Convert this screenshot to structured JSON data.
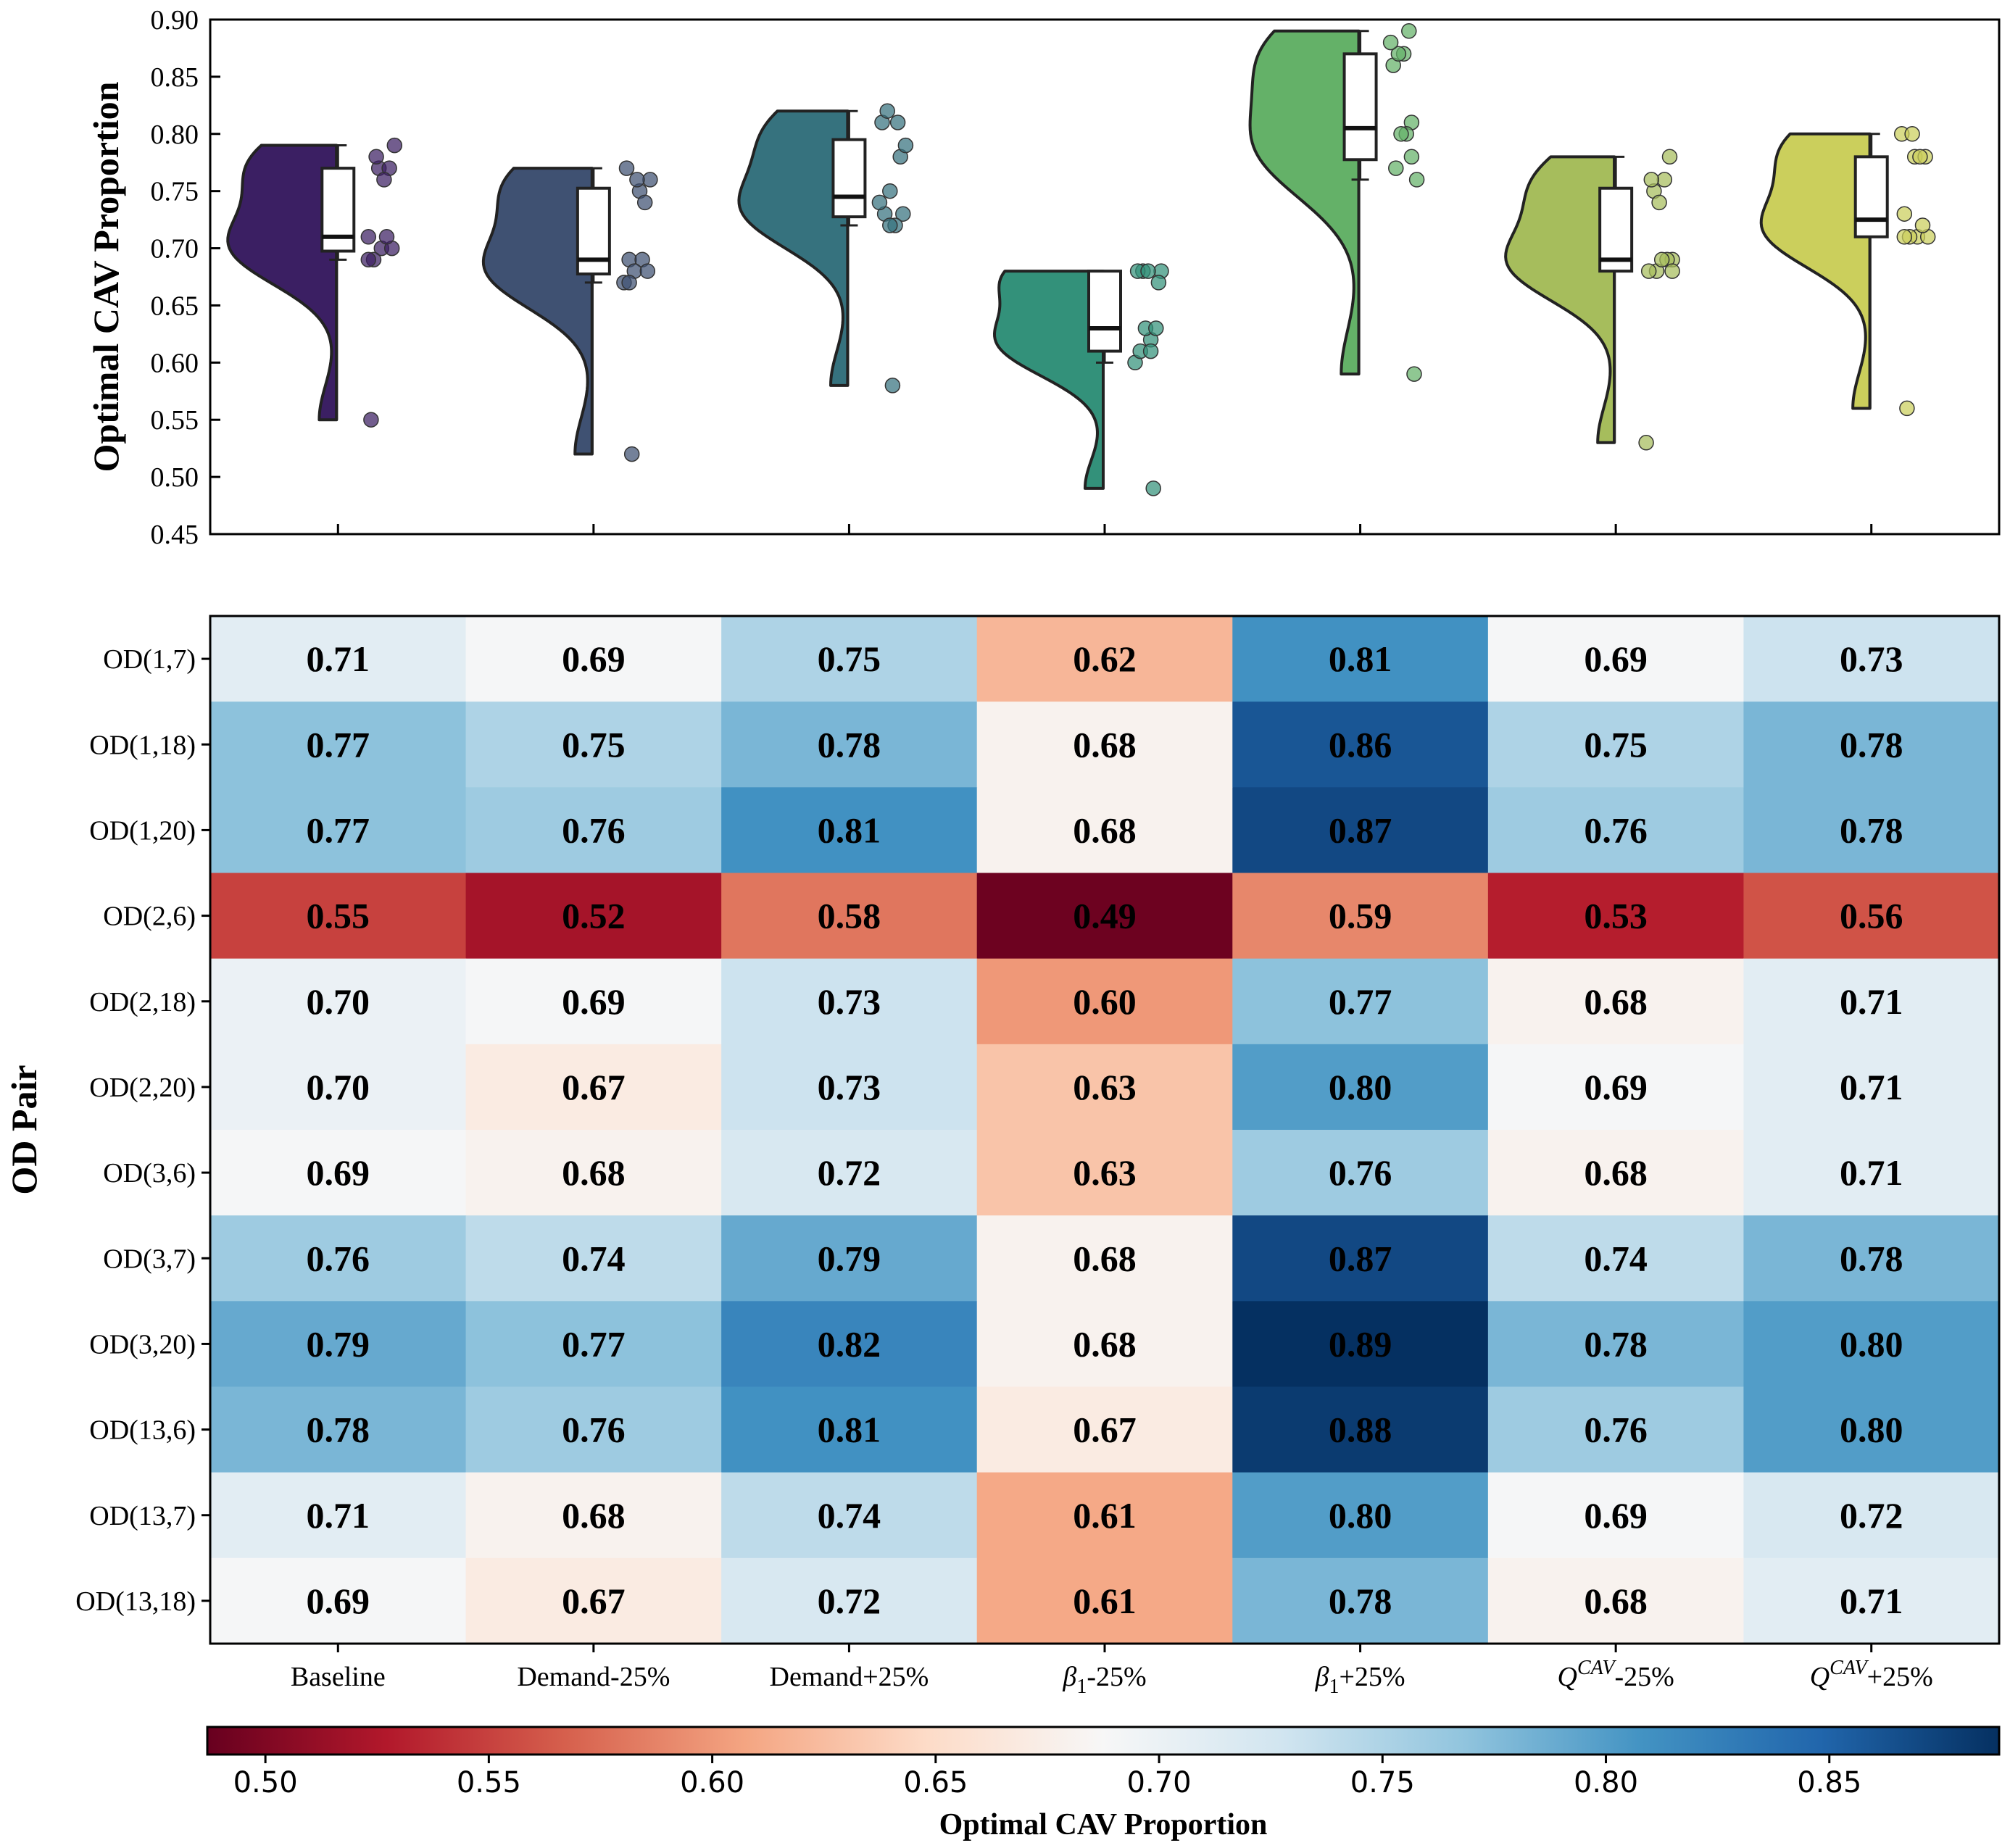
{
  "chart_data": [
    {
      "type": "raincloud",
      "title": "",
      "xlabel": "",
      "ylabel": "Optimal CAV Proportion",
      "ylim": [
        0.45,
        0.9
      ],
      "yticks": [
        0.45,
        0.5,
        0.55,
        0.6,
        0.65,
        0.7,
        0.75,
        0.8,
        0.85,
        0.9
      ],
      "ytick_labels": [
        "0.45",
        "0.50",
        "0.55",
        "0.60",
        "0.65",
        "0.70",
        "0.75",
        "0.80",
        "0.85",
        "0.90"
      ],
      "series": [
        {
          "name": "Baseline",
          "color": "#3b1f63",
          "values": [
            0.71,
            0.77,
            0.77,
            0.55,
            0.7,
            0.7,
            0.69,
            0.76,
            0.79,
            0.78,
            0.71,
            0.69
          ]
        },
        {
          "name": "Demand-25%",
          "color": "#3f5172",
          "values": [
            0.69,
            0.75,
            0.76,
            0.52,
            0.69,
            0.67,
            0.68,
            0.74,
            0.77,
            0.76,
            0.68,
            0.67
          ]
        },
        {
          "name": "Demand+25%",
          "color": "#36727e",
          "values": [
            0.75,
            0.78,
            0.81,
            0.58,
            0.73,
            0.73,
            0.72,
            0.79,
            0.82,
            0.81,
            0.74,
            0.72
          ]
        },
        {
          "name": "β1-25%",
          "color": "#33917a",
          "values": [
            0.62,
            0.68,
            0.68,
            0.49,
            0.6,
            0.63,
            0.63,
            0.68,
            0.68,
            0.67,
            0.61,
            0.61
          ]
        },
        {
          "name": "β1+25%",
          "color": "#64b168",
          "values": [
            0.81,
            0.86,
            0.87,
            0.59,
            0.77,
            0.8,
            0.76,
            0.87,
            0.89,
            0.88,
            0.8,
            0.78
          ]
        },
        {
          "name": "QCAV-25%",
          "color": "#a6bd5c",
          "values": [
            0.69,
            0.75,
            0.76,
            0.53,
            0.68,
            0.69,
            0.68,
            0.74,
            0.78,
            0.76,
            0.69,
            0.68
          ]
        },
        {
          "name": "QCAV+25%",
          "color": "#cbcf5c",
          "values": [
            0.73,
            0.78,
            0.78,
            0.56,
            0.71,
            0.71,
            0.71,
            0.78,
            0.8,
            0.8,
            0.72,
            0.71
          ]
        }
      ]
    },
    {
      "type": "heatmap",
      "ylabel": "OD Pair",
      "rows": [
        "OD(1,7)",
        "OD(1,18)",
        "OD(1,20)",
        "OD(2,6)",
        "OD(2,18)",
        "OD(2,20)",
        "OD(3,6)",
        "OD(3,7)",
        "OD(3,20)",
        "OD(13,6)",
        "OD(13,7)",
        "OD(13,18)"
      ],
      "columns": [
        {
          "base": "Baseline",
          "sub": "",
          "sup": "",
          "tail": ""
        },
        {
          "base": "Demand-25%",
          "sub": "",
          "sup": "",
          "tail": ""
        },
        {
          "base": "Demand+25%",
          "sub": "",
          "sup": "",
          "tail": ""
        },
        {
          "base": "β",
          "sub": "1",
          "sup": "",
          "tail": "-25%"
        },
        {
          "base": "β",
          "sub": "1",
          "sup": "",
          "tail": "+25%"
        },
        {
          "base": "Q",
          "sub": "",
          "sup": "CAV",
          "tail": "-25%"
        },
        {
          "base": "Q",
          "sub": "",
          "sup": "CAV",
          "tail": "+25%"
        }
      ],
      "values": [
        [
          0.71,
          0.69,
          0.75,
          0.62,
          0.81,
          0.69,
          0.73
        ],
        [
          0.77,
          0.75,
          0.78,
          0.68,
          0.86,
          0.75,
          0.78
        ],
        [
          0.77,
          0.76,
          0.81,
          0.68,
          0.87,
          0.76,
          0.78
        ],
        [
          0.55,
          0.52,
          0.58,
          0.49,
          0.59,
          0.53,
          0.56
        ],
        [
          0.7,
          0.69,
          0.73,
          0.6,
          0.77,
          0.68,
          0.71
        ],
        [
          0.7,
          0.67,
          0.73,
          0.63,
          0.8,
          0.69,
          0.71
        ],
        [
          0.69,
          0.68,
          0.72,
          0.63,
          0.76,
          0.68,
          0.71
        ],
        [
          0.76,
          0.74,
          0.79,
          0.68,
          0.87,
          0.74,
          0.78
        ],
        [
          0.79,
          0.77,
          0.82,
          0.68,
          0.89,
          0.78,
          0.8
        ],
        [
          0.78,
          0.76,
          0.81,
          0.67,
          0.88,
          0.76,
          0.8
        ],
        [
          0.71,
          0.68,
          0.74,
          0.61,
          0.8,
          0.69,
          0.72
        ],
        [
          0.69,
          0.67,
          0.72,
          0.61,
          0.78,
          0.68,
          0.71
        ]
      ],
      "cell_labels": [
        [
          "0.71",
          "0.69",
          "0.75",
          "0.62",
          "0.81",
          "0.69",
          "0.73"
        ],
        [
          "0.77",
          "0.75",
          "0.78",
          "0.68",
          "0.86",
          "0.75",
          "0.78"
        ],
        [
          "0.77",
          "0.76",
          "0.81",
          "0.68",
          "0.87",
          "0.76",
          "0.78"
        ],
        [
          "0.55",
          "0.52",
          "0.58",
          "0.49",
          "0.59",
          "0.53",
          "0.56"
        ],
        [
          "0.70",
          "0.69",
          "0.73",
          "0.60",
          "0.77",
          "0.68",
          "0.71"
        ],
        [
          "0.70",
          "0.67",
          "0.73",
          "0.63",
          "0.80",
          "0.69",
          "0.71"
        ],
        [
          "0.69",
          "0.68",
          "0.72",
          "0.63",
          "0.76",
          "0.68",
          "0.71"
        ],
        [
          "0.76",
          "0.74",
          "0.79",
          "0.68",
          "0.87",
          "0.74",
          "0.78"
        ],
        [
          "0.79",
          "0.77",
          "0.82",
          "0.68",
          "0.89",
          "0.78",
          "0.80"
        ],
        [
          "0.78",
          "0.76",
          "0.81",
          "0.67",
          "0.88",
          "0.76",
          "0.80"
        ],
        [
          "0.71",
          "0.68",
          "0.74",
          "0.61",
          "0.80",
          "0.69",
          "0.72"
        ],
        [
          "0.69",
          "0.67",
          "0.72",
          "0.61",
          "0.78",
          "0.68",
          "0.71"
        ]
      ],
      "colormap": "RdBu",
      "vmin": 0.487,
      "vmax": 0.888,
      "colorbar": {
        "label": "Optimal CAV Proportion",
        "ticks": [
          0.5,
          0.55,
          0.6,
          0.65,
          0.7,
          0.75,
          0.8,
          0.85
        ],
        "tick_labels": [
          "0.50",
          "0.55",
          "0.60",
          "0.65",
          "0.70",
          "0.75",
          "0.80",
          "0.85"
        ],
        "placement": "bottom"
      }
    }
  ]
}
